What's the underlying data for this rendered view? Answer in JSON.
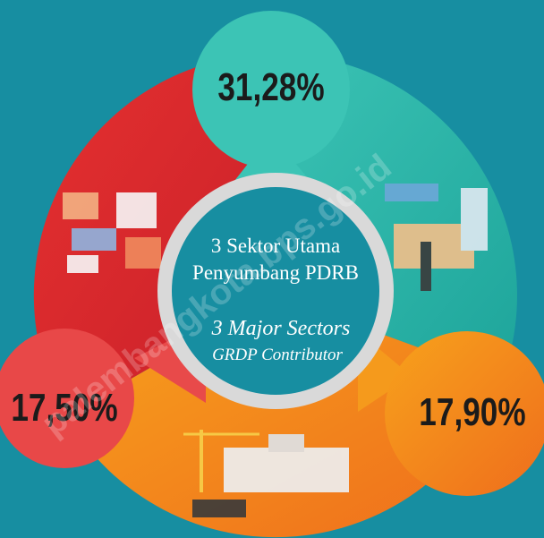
{
  "segments": [
    {
      "label": "31,28%"
    },
    {
      "label": "17,50%"
    },
    {
      "label": "17,90%"
    }
  ],
  "center": {
    "title_line1": "3 Sektor Utama",
    "title_line2": "Penyumbang PDRB",
    "subtitle_line1": "3 Major Sectors",
    "subtitle_line2": "GRDP Contributor"
  },
  "watermark": "palembangkota.bps.go.id"
}
